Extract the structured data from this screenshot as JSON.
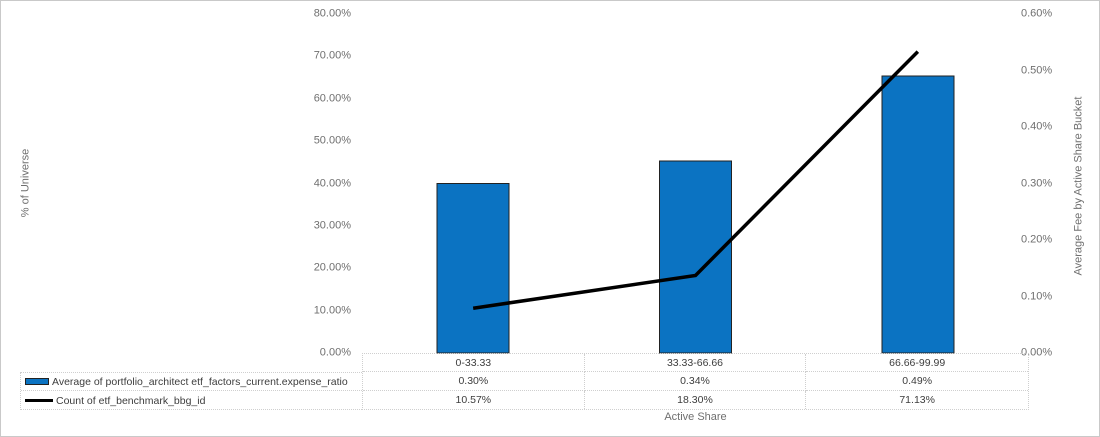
{
  "chart_data": {
    "type": "combo",
    "xlabel": "Active Share",
    "categories": [
      "0-33.33",
      "33.33-66.66",
      "66.66-99.99"
    ],
    "series": [
      {
        "name": "Average of portfolio_architect etf_factors_current.expense_ratio",
        "type": "bar",
        "axis": "right",
        "values": [
          0.3,
          0.34,
          0.49
        ],
        "labels": [
          "0.30%",
          "0.34%",
          "0.49%"
        ],
        "color": "#0b73c2"
      },
      {
        "name": "Count of etf_benchmark_bbg_id",
        "type": "line",
        "axis": "left",
        "values": [
          10.57,
          18.3,
          71.13
        ],
        "labels": [
          "10.57%",
          "18.30%",
          "71.13%"
        ],
        "color": "#000000"
      }
    ],
    "left_axis": {
      "title": "% of Universe",
      "min": 0,
      "max": 80,
      "ticks": [
        "0.00%",
        "10.00%",
        "20.00%",
        "30.00%",
        "40.00%",
        "50.00%",
        "60.00%",
        "70.00%",
        "80.00%"
      ]
    },
    "right_axis": {
      "title": "Average Fee by Active Share Bucket",
      "min": 0,
      "max": 0.6,
      "ticks": [
        "0.00%",
        "0.10%",
        "0.20%",
        "0.30%",
        "0.40%",
        "0.50%",
        "0.60%"
      ]
    },
    "grid": false,
    "legend_position": "data-table-left",
    "data_table": true
  },
  "colors": {
    "bar_fill": "#0b73c2",
    "bar_border": "#222222",
    "line": "#000000",
    "table_border": "#cfcfcf",
    "axis_text": "#6f6f6f",
    "table_text": "#3d3d3d",
    "chart_border": "#c9c9c9",
    "background": "#ffffff"
  }
}
